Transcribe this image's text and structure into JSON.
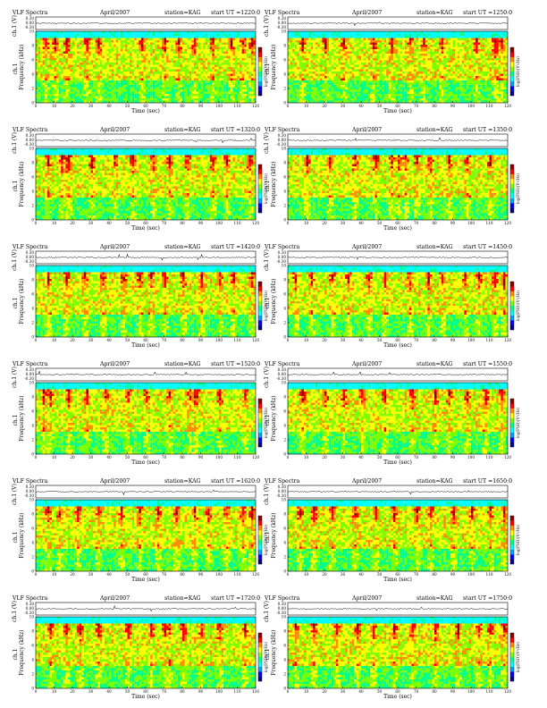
{
  "page": {
    "title": "VLF Spectra",
    "month": "April/2007",
    "station": "station=KAG"
  },
  "colors": {
    "scale": [
      "#00008b",
      "#0000ff",
      "#00a0ff",
      "#00ffff",
      "#00ff88",
      "#7cff00",
      "#ffff00",
      "#ff8c00",
      "#ff0000",
      "#8b0000"
    ],
    "background": "#ffffff"
  },
  "chart_data": [
    {
      "type": "heatmap",
      "title": "VLF Spectra",
      "date": "April/2007",
      "station": "station=KAG",
      "start_ut": "start UT =1220:0",
      "ylabel": "Frequency (kHz)",
      "ylabel_top": "ch.1",
      "waveform_label": "ch.1 (V)",
      "xlabel": "Time (sec)",
      "colorbar_label": "log(PSD)(V²/Hz)",
      "xticks": [
        "0",
        "10",
        "20",
        "30",
        "40",
        "50",
        "60",
        "70",
        "80",
        "90",
        "100",
        "110",
        "120"
      ],
      "yticks": [
        "0",
        "2",
        "4",
        "6",
        "8",
        "10"
      ],
      "waveform_ticks": [
        "0.30",
        "0.00",
        "-0.30"
      ],
      "xlim": [
        0,
        120
      ],
      "ylim": [
        0,
        10
      ],
      "bursts": [
        5,
        10,
        16,
        28,
        34,
        58,
        70,
        78,
        86,
        96,
        106,
        112,
        118
      ]
    },
    {
      "type": "heatmap",
      "title": "VLF Spectra",
      "date": "April/2007",
      "station": "station=KAG",
      "start_ut": "start UT =1250:0",
      "ylabel": "Frequency (kHz)",
      "ylabel_top": "ch.1",
      "waveform_label": "ch.1 (V)",
      "xlabel": "Time (sec)",
      "colorbar_label": "log(PSD)(V²/Hz)",
      "xticks": [
        "0",
        "10",
        "20",
        "30",
        "40",
        "50",
        "60",
        "70",
        "80",
        "90",
        "100",
        "110",
        "120"
      ],
      "yticks": [
        "0",
        "2",
        "4",
        "6",
        "8",
        "10"
      ],
      "waveform_ticks": [
        "0.30",
        "0.00",
        "-0.30"
      ],
      "xlim": [
        0,
        120
      ],
      "ylim": [
        0,
        10
      ],
      "bursts": [
        8,
        20,
        30,
        46,
        56,
        66,
        74,
        84,
        102,
        112,
        114,
        116
      ]
    },
    {
      "type": "heatmap",
      "title": "VLF Spectra",
      "date": "April/2007",
      "station": "station=KAG",
      "start_ut": "start UT =1320:0",
      "ylabel": "Frequency (kHz)",
      "ylabel_top": "ch.1",
      "waveform_label": "ch.1 (V)",
      "xlabel": "Time (sec)",
      "colorbar_label": "log(PSD)(V²/Hz)",
      "xticks": [
        "0",
        "10",
        "20",
        "30",
        "40",
        "50",
        "60",
        "70",
        "80",
        "90",
        "100",
        "110",
        "120"
      ],
      "yticks": [
        "0",
        "2",
        "4",
        "6",
        "8",
        "10"
      ],
      "waveform_ticks": [
        "0.30",
        "0.00",
        "-0.30"
      ],
      "xlim": [
        0,
        120
      ],
      "ylim": [
        0,
        10
      ],
      "bursts": [
        6,
        14,
        16,
        18,
        30,
        42,
        52,
        64,
        72,
        82,
        96,
        104,
        116
      ]
    },
    {
      "type": "heatmap",
      "title": "VLF Spectra",
      "date": "April/2007",
      "station": "station=KAG",
      "start_ut": "start UT =1350:0",
      "ylabel": "Frequency (kHz)",
      "ylabel_top": "ch.1",
      "waveform_label": "ch.1 (V)",
      "xlabel": "Time (sec)",
      "colorbar_label": "log(PSD)(V²/Hz)",
      "xticks": [
        "0",
        "10",
        "20",
        "30",
        "40",
        "50",
        "60",
        "70",
        "80",
        "90",
        "100",
        "110",
        "120"
      ],
      "yticks": [
        "0",
        "2",
        "4",
        "6",
        "8",
        "10"
      ],
      "waveform_ticks": [
        "0.30",
        "0.00",
        "-0.30"
      ],
      "xlim": [
        0,
        120
      ],
      "ylim": [
        0,
        10
      ],
      "bursts": [
        10,
        22,
        36,
        48,
        56,
        60,
        64,
        70,
        78,
        88,
        98,
        110
      ]
    },
    {
      "type": "heatmap",
      "title": "VLF Spectra",
      "date": "April/2007",
      "station": "station=KAG",
      "start_ut": "start UT =1420:0",
      "ylabel": "Frequency (kHz)",
      "ylabel_top": "ch.1",
      "waveform_label": "ch.1 (V)",
      "xlabel": "Time (sec)",
      "colorbar_label": "log(PSD)(V²/Hz)",
      "xticks": [
        "0",
        "10",
        "20",
        "30",
        "40",
        "50",
        "60",
        "70",
        "80",
        "90",
        "100",
        "110",
        "120"
      ],
      "yticks": [
        "0",
        "2",
        "4",
        "6",
        "8",
        "10"
      ],
      "waveform_ticks": [
        "0.30",
        "0.00",
        "-0.30"
      ],
      "xlim": [
        0,
        120
      ],
      "ylim": [
        0,
        10
      ],
      "bursts": [
        6,
        16,
        26,
        36,
        48,
        56,
        62,
        70,
        80,
        90,
        100,
        108,
        118
      ]
    },
    {
      "type": "heatmap",
      "title": "VLF Spectra",
      "date": "April/2007",
      "station": "station=KAG",
      "start_ut": "start UT =1450:0",
      "ylabel": "Frequency (kHz)",
      "ylabel_top": "ch.1",
      "waveform_label": "ch.1 (V)",
      "xlabel": "Time (sec)",
      "colorbar_label": "log(PSD)(V²/Hz)",
      "xticks": [
        "0",
        "10",
        "20",
        "30",
        "40",
        "50",
        "60",
        "70",
        "80",
        "90",
        "100",
        "110",
        "120"
      ],
      "yticks": [
        "0",
        "2",
        "4",
        "6",
        "8",
        "10"
      ],
      "waveform_ticks": [
        "0.30",
        "0.00",
        "-0.30"
      ],
      "xlim": [
        0,
        120
      ],
      "ylim": [
        0,
        10
      ],
      "bursts": [
        4,
        12,
        24,
        32,
        44,
        52,
        66,
        76,
        84,
        96,
        104,
        112,
        118
      ]
    },
    {
      "type": "heatmap",
      "title": "VLF Spectra",
      "date": "April/2007",
      "station": "station=KAG",
      "start_ut": "start UT =1520:0",
      "ylabel": "Frequency (kHz)",
      "ylabel_top": "ch.1",
      "waveform_label": "ch.1 (V)",
      "xlabel": "Time (sec)",
      "colorbar_label": "log(PSD)(V²/Hz)",
      "xticks": [
        "0",
        "10",
        "20",
        "30",
        "40",
        "50",
        "60",
        "70",
        "80",
        "90",
        "100",
        "110",
        "120"
      ],
      "yticks": [
        "0",
        "2",
        "4",
        "6",
        "8",
        "10"
      ],
      "waveform_ticks": [
        "0.30",
        "0.00",
        "-0.30"
      ],
      "xlim": [
        0,
        120
      ],
      "ylim": [
        0,
        10
      ],
      "bursts": [
        4,
        8,
        18,
        28,
        38,
        50,
        60,
        72,
        84,
        86,
        88,
        100,
        114
      ]
    },
    {
      "type": "heatmap",
      "title": "VLF Spectra",
      "date": "April/2007",
      "station": "station=KAG",
      "start_ut": "start UT =1550:0",
      "ylabel": "Frequency (kHz)",
      "ylabel_top": "ch.1",
      "waveform_label": "ch.1 (V)",
      "xlabel": "Time (sec)",
      "colorbar_label": "log(PSD)(V²/Hz)",
      "xticks": [
        "0",
        "10",
        "20",
        "30",
        "40",
        "50",
        "60",
        "70",
        "80",
        "90",
        "100",
        "110",
        "120"
      ],
      "yticks": [
        "0",
        "2",
        "4",
        "6",
        "8",
        "10"
      ],
      "waveform_ticks": [
        "0.30",
        "0.00",
        "-0.30"
      ],
      "xlim": [
        0,
        120
      ],
      "ylim": [
        0,
        10
      ],
      "bursts": [
        8,
        20,
        30,
        40,
        52,
        68,
        80,
        88,
        98,
        108,
        116
      ]
    },
    {
      "type": "heatmap",
      "title": "VLF Spectra",
      "date": "April/2007",
      "station": "station=KAG",
      "start_ut": "start UT =1620:0",
      "ylabel": "Frequency (kHz)",
      "ylabel_top": "ch.1",
      "waveform_label": "ch.1 (V)",
      "xlabel": "Time (sec)",
      "colorbar_label": "log(PSD)(V²/Hz)",
      "xticks": [
        "0",
        "10",
        "20",
        "30",
        "40",
        "50",
        "60",
        "70",
        "80",
        "90",
        "100",
        "110",
        "120"
      ],
      "yticks": [
        "0",
        "2",
        "4",
        "6",
        "8",
        "10"
      ],
      "waveform_ticks": [
        "0.30",
        "0.00",
        "-0.30"
      ],
      "xlim": [
        0,
        120
      ],
      "ylim": [
        0,
        10
      ],
      "bursts": [
        6,
        12,
        22,
        34,
        46,
        56,
        66,
        76,
        86,
        94,
        104,
        112,
        118
      ]
    },
    {
      "type": "heatmap",
      "title": "VLF Spectra",
      "date": "April/2007",
      "station": "station=KAG",
      "start_ut": "start UT =1650:0",
      "ylabel": "Frequency (kHz)",
      "ylabel_top": "ch.1",
      "waveform_label": "ch.1 (V)",
      "xlabel": "Time (sec)",
      "colorbar_label": "log(PSD)(V²/Hz)",
      "xticks": [
        "0",
        "10",
        "20",
        "30",
        "40",
        "50",
        "60",
        "70",
        "80",
        "90",
        "100",
        "110",
        "120"
      ],
      "yticks": [
        "0",
        "2",
        "4",
        "6",
        "8",
        "10"
      ],
      "waveform_ticks": [
        "0.30",
        "0.00",
        "-0.30"
      ],
      "xlim": [
        0,
        120
      ],
      "ylim": [
        0,
        10
      ],
      "bursts": [
        6,
        14,
        24,
        36,
        48,
        58,
        70,
        78,
        90,
        100,
        110,
        118
      ]
    },
    {
      "type": "heatmap",
      "title": "VLF Spectra",
      "date": "April/2007",
      "station": "station=KAG",
      "start_ut": "start UT =1720:0",
      "ylabel": "Frequency (kHz)",
      "ylabel_top": "ch.1",
      "waveform_label": "ch.1 (V)",
      "xlabel": "Time (sec)",
      "colorbar_label": "log(PSD)(V²/Hz)",
      "xticks": [
        "0",
        "10",
        "20",
        "30",
        "40",
        "50",
        "60",
        "70",
        "80",
        "90",
        "100",
        "110",
        "120"
      ],
      "yticks": [
        "0",
        "2",
        "4",
        "6",
        "8",
        "10"
      ],
      "waveform_ticks": [
        "0.30",
        "0.00",
        "-0.30"
      ],
      "xlim": [
        0,
        120
      ],
      "ylim": [
        0,
        10
      ],
      "bursts": [
        8,
        16,
        24,
        34,
        50,
        62,
        70,
        72,
        80,
        90,
        100,
        114
      ]
    },
    {
      "type": "heatmap",
      "title": "VLF Spectra",
      "date": "April/2007",
      "station": "station=KAG",
      "start_ut": "start UT =1750:0",
      "ylabel": "Frequency (kHz)",
      "ylabel_top": "ch.1",
      "waveform_label": "ch.1 (V)",
      "xlabel": "Time (sec)",
      "colorbar_label": "log(PSD)(V²/Hz)",
      "xticks": [
        "0",
        "10",
        "20",
        "30",
        "40",
        "50",
        "60",
        "70",
        "80",
        "90",
        "100",
        "110",
        "120"
      ],
      "yticks": [
        "0",
        "2",
        "4",
        "6",
        "8",
        "10"
      ],
      "waveform_ticks": [
        "0.30",
        "0.00",
        "-0.30"
      ],
      "xlim": [
        0,
        120
      ],
      "ylim": [
        0,
        10
      ],
      "bursts": [
        4,
        14,
        26,
        38,
        46,
        58,
        68,
        80,
        92,
        104,
        110,
        118
      ]
    }
  ]
}
